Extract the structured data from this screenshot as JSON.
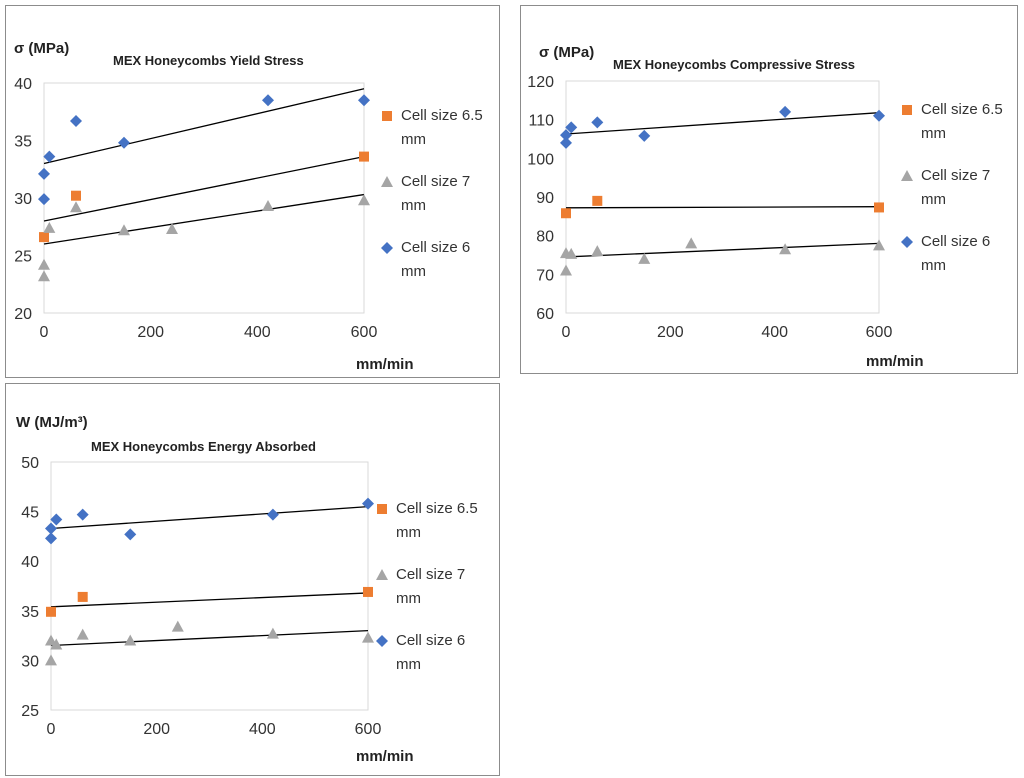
{
  "colors": {
    "cell_6_5": "#ED7D31",
    "cell_7": "#A5A5A5",
    "cell_6": "#4472C4",
    "trend": "#000000"
  },
  "chart_data": [
    {
      "type": "scatter",
      "title": "MEX Honeycombs Yield Stress",
      "ylabel": "σ (MPa)",
      "xlabel": "mm/min",
      "xlim": [
        0,
        600
      ],
      "ylim": [
        20,
        40
      ],
      "xticks": [
        0,
        200,
        400,
        600
      ],
      "yticks": [
        20,
        25,
        30,
        35,
        40
      ],
      "series": [
        {
          "name": "Cell size 6.5 mm",
          "marker": "square",
          "color": "#ED7D31",
          "points": [
            [
              0,
              26.6
            ],
            [
              60,
              30.2
            ],
            [
              600,
              33.6
            ]
          ],
          "trend": [
            [
              0,
              28.0
            ],
            [
              600,
              33.6
            ]
          ]
        },
        {
          "name": "Cell size 7 mm",
          "marker": "triangle",
          "color": "#A5A5A5",
          "points": [
            [
              0,
              23.2
            ],
            [
              0,
              24.2
            ],
            [
              10,
              27.4
            ],
            [
              60,
              29.2
            ],
            [
              150,
              27.2
            ],
            [
              240,
              27.3
            ],
            [
              420,
              29.3
            ],
            [
              600,
              29.8
            ]
          ],
          "trend": [
            [
              0,
              26.0
            ],
            [
              600,
              30.3
            ]
          ]
        },
        {
          "name": "Cell size 6 mm",
          "marker": "diamond",
          "color": "#4472C4",
          "points": [
            [
              0,
              29.9
            ],
            [
              0,
              32.1
            ],
            [
              10,
              33.6
            ],
            [
              60,
              36.7
            ],
            [
              150,
              34.8
            ],
            [
              420,
              38.5
            ],
            [
              600,
              38.5
            ]
          ],
          "trend": [
            [
              0,
              33.0
            ],
            [
              600,
              39.5
            ]
          ]
        }
      ]
    },
    {
      "type": "scatter",
      "title": "MEX Honeycombs Compressive Stress",
      "ylabel": "σ (MPa)",
      "xlabel": "mm/min",
      "xlim": [
        0,
        600
      ],
      "ylim": [
        60,
        120
      ],
      "xticks": [
        0,
        200,
        400,
        600
      ],
      "yticks": [
        60,
        70,
        80,
        90,
        100,
        110,
        120
      ],
      "series": [
        {
          "name": "Cell size 6.5 mm",
          "marker": "square",
          "color": "#ED7D31",
          "points": [
            [
              0,
              85.8
            ],
            [
              60,
              89.0
            ],
            [
              600,
              87.3
            ]
          ],
          "trend": [
            [
              0,
              87.2
            ],
            [
              600,
              87.5
            ]
          ]
        },
        {
          "name": "Cell size 7 mm",
          "marker": "triangle",
          "color": "#A5A5A5",
          "points": [
            [
              0,
              71.0
            ],
            [
              0,
              75.5
            ],
            [
              10,
              75.3
            ],
            [
              60,
              76.0
            ],
            [
              150,
              74.0
            ],
            [
              240,
              78.0
            ],
            [
              420,
              76.5
            ],
            [
              600,
              77.5
            ]
          ],
          "trend": [
            [
              0,
              74.5
            ],
            [
              600,
              78.0
            ]
          ]
        },
        {
          "name": "Cell size 6 mm",
          "marker": "diamond",
          "color": "#4472C4",
          "points": [
            [
              0,
              104.0
            ],
            [
              0,
              106.0
            ],
            [
              10,
              108.0
            ],
            [
              60,
              109.3
            ],
            [
              150,
              105.8
            ],
            [
              420,
              112.0
            ],
            [
              600,
              111.0
            ]
          ],
          "trend": [
            [
              0,
              106.3
            ],
            [
              600,
              111.8
            ]
          ]
        }
      ]
    },
    {
      "type": "scatter",
      "title": "MEX Honeycombs Energy Absorbed",
      "ylabel": "W (MJ/m³)",
      "xlabel": "mm/min",
      "xlim": [
        0,
        600
      ],
      "ylim": [
        25,
        50
      ],
      "xticks": [
        0,
        200,
        400,
        600
      ],
      "yticks": [
        25,
        30,
        35,
        40,
        45,
        50
      ],
      "series": [
        {
          "name": "Cell size 6.5 mm",
          "marker": "square",
          "color": "#ED7D31",
          "points": [
            [
              0,
              34.9
            ],
            [
              60,
              36.4
            ],
            [
              600,
              36.9
            ]
          ],
          "trend": [
            [
              0,
              35.4
            ],
            [
              600,
              36.8
            ]
          ]
        },
        {
          "name": "Cell size 7 mm",
          "marker": "triangle",
          "color": "#A5A5A5",
          "points": [
            [
              0,
              30.0
            ],
            [
              0,
              32.0
            ],
            [
              10,
              31.6
            ],
            [
              60,
              32.6
            ],
            [
              150,
              32.0
            ],
            [
              240,
              33.4
            ],
            [
              420,
              32.7
            ],
            [
              600,
              32.3
            ]
          ],
          "trend": [
            [
              0,
              31.5
            ],
            [
              600,
              33.0
            ]
          ]
        },
        {
          "name": "Cell size 6 mm",
          "marker": "diamond",
          "color": "#4472C4",
          "points": [
            [
              0,
              42.3
            ],
            [
              0,
              43.3
            ],
            [
              10,
              44.2
            ],
            [
              60,
              44.7
            ],
            [
              150,
              42.7
            ],
            [
              420,
              44.7
            ],
            [
              600,
              45.8
            ]
          ],
          "trend": [
            [
              0,
              43.3
            ],
            [
              600,
              45.5
            ]
          ]
        }
      ]
    }
  ],
  "legend": [
    {
      "line1": "Cell size 6.5",
      "line2": "mm"
    },
    {
      "line1": "Cell size 7",
      "line2": "mm"
    },
    {
      "line1": "Cell size 6",
      "line2": "mm"
    }
  ]
}
